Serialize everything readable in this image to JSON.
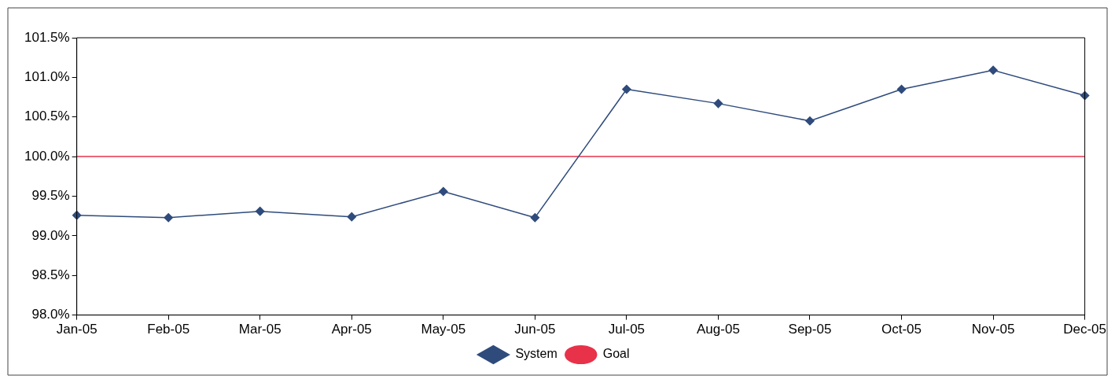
{
  "chart_data": {
    "type": "line",
    "categories": [
      "Jan-05",
      "Feb-05",
      "Mar-05",
      "Apr-05",
      "May-05",
      "Jun-05",
      "Jul-05",
      "Aug-05",
      "Sep-05",
      "Oct-05",
      "Nov-05",
      "Dec-05"
    ],
    "series": [
      {
        "name": "System",
        "color": "#2f4b7c",
        "marker": "diamond",
        "values": [
          99.26,
          99.23,
          99.31,
          99.24,
          99.56,
          99.23,
          100.85,
          100.67,
          100.45,
          100.85,
          101.09,
          100.77
        ]
      },
      {
        "name": "Goal",
        "color": "#e8324a",
        "marker": "none",
        "values": [
          100,
          100,
          100,
          100,
          100,
          100,
          100,
          100,
          100,
          100,
          100,
          100
        ]
      }
    ],
    "ylim": [
      98,
      101.5
    ],
    "yticks": [
      {
        "value": 98,
        "label": "98.0%"
      },
      {
        "value": 98.5,
        "label": "98.5%"
      },
      {
        "value": 99,
        "label": "99.0%"
      },
      {
        "value": 99.5,
        "label": "99.5%"
      },
      {
        "value": 100,
        "label": "100.0%"
      },
      {
        "value": 100.5,
        "label": "100.5%"
      },
      {
        "value": 101,
        "label": "101.0%"
      },
      {
        "value": 101.5,
        "label": "101.5%"
      }
    ],
    "grid": false,
    "legend": "bottom"
  }
}
